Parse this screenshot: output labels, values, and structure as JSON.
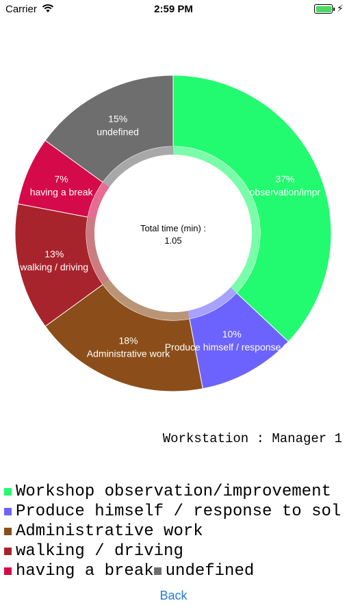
{
  "status_bar": {
    "carrier": "Carrier",
    "time": "2:59 PM",
    "battery_level": 1.0
  },
  "chart_data": {
    "type": "pie",
    "style": "donut",
    "center_label": "Total time (min) :",
    "center_value": "1.05",
    "slices": [
      {
        "label": "Workshop observation/improvement",
        "percent_label": "37%",
        "value": 37,
        "color": "#22fb6f",
        "slice_text": "observation/impr"
      },
      {
        "label": "Produce himself / response to sol",
        "percent_label": "10%",
        "value": 10,
        "color": "#6c63ff",
        "slice_text": "Produce himself / response to s"
      },
      {
        "label": "Administrative work",
        "percent_label": "18%",
        "value": 18,
        "color": "#8b4e1a",
        "slice_text": "Administrative work"
      },
      {
        "label": "walking / driving",
        "percent_label": "13%",
        "value": 13,
        "color": "#a8242c",
        "slice_text": "walking / driving"
      },
      {
        "label": "having a break",
        "percent_label": "7%",
        "value": 7,
        "color": "#d50a4a",
        "slice_text": "having a break"
      },
      {
        "label": "undefined",
        "percent_label": "15%",
        "value": 15,
        "color": "#6e6e6e",
        "slice_text": "undefined"
      }
    ]
  },
  "workstation_label": "Workstation : Manager 1",
  "legend_lines": [
    [
      0
    ],
    [
      1
    ],
    [
      2
    ],
    [
      3
    ],
    [
      4,
      5
    ]
  ],
  "back_button": "Back"
}
